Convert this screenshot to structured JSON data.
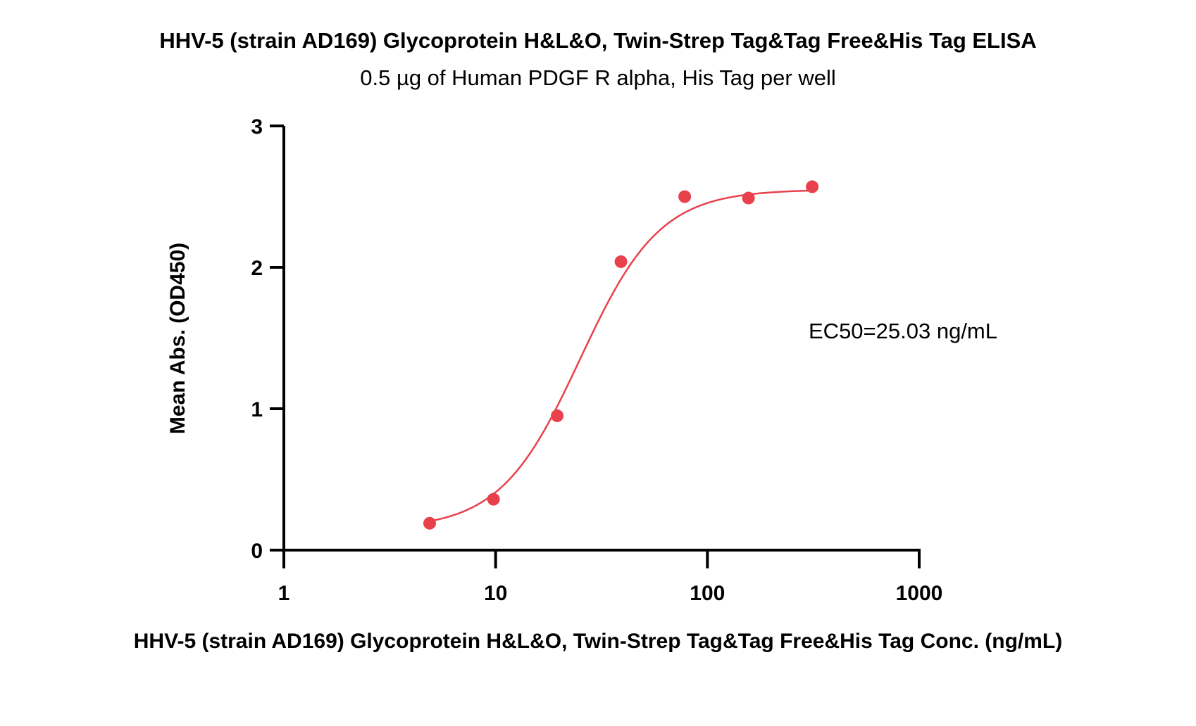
{
  "chart_data": {
    "type": "scatter",
    "title": "HHV-5 (strain AD169) Glycoprotein H&L&O, Twin-Strep Tag&Tag Free&His Tag ELISA",
    "subtitle": "0.5 µg of Human PDGF R alpha, His Tag per well",
    "xlabel": "HHV-5 (strain AD169) Glycoprotein H&L&O, Twin-Strep Tag&Tag Free&His Tag Conc. (ng/mL)",
    "ylabel": "Mean Abs. (OD450)",
    "xscale": "log",
    "xlim": [
      1,
      1000
    ],
    "ylim": [
      0,
      3
    ],
    "xticks": [
      1,
      10,
      100,
      1000
    ],
    "xtick_labels": [
      "1",
      "10",
      "100",
      "1000"
    ],
    "yticks": [
      0,
      1,
      2,
      3
    ],
    "ytick_labels": [
      "0",
      "1",
      "2",
      "3"
    ],
    "grid": false,
    "legend": "none",
    "series": [
      {
        "x": [
          4.88,
          9.77,
          19.53,
          39.06,
          78.13,
          156.25,
          312.5
        ],
        "y": [
          0.19,
          0.36,
          0.95,
          2.04,
          2.5,
          2.49,
          2.57
        ],
        "color": "#e8414c",
        "fit": "four-parameter logistic"
      }
    ],
    "fit_curve": {
      "bottom": 0.15,
      "top": 2.55,
      "ec50": 25.03,
      "hill": 2.3,
      "x_range": [
        4.88,
        312.5
      ],
      "color": "#e8414c"
    },
    "annotations": [
      {
        "text": "EC50=25.03 ng/mL"
      }
    ]
  }
}
